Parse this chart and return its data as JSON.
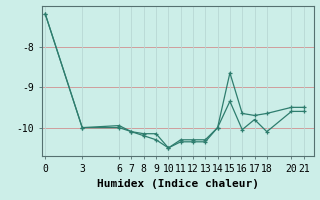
{
  "xlabel": "Humidex (Indice chaleur)",
  "background_color": "#cceee8",
  "line_color": "#2e7d6e",
  "grid_color_h": "#d09090",
  "grid_color_v": "#b8d8d4",
  "xtick_labels": [
    "0",
    "3",
    "6",
    "7",
    "8",
    "9",
    "10",
    "11",
    "12",
    "13",
    "14",
    "15",
    "16",
    "17",
    "18",
    "20",
    "21"
  ],
  "xtick_positions": [
    0,
    3,
    6,
    7,
    8,
    9,
    10,
    11,
    12,
    13,
    14,
    15,
    16,
    17,
    18,
    20,
    21
  ],
  "ytick_labels": [
    "-8",
    "-9",
    "-10"
  ],
  "ytick_positions": [
    -8,
    -9,
    -10
  ],
  "ylim": [
    -10.7,
    -7.0
  ],
  "xlim": [
    -0.3,
    21.8
  ],
  "line1_x": [
    0,
    3,
    6,
    7,
    8,
    9,
    10,
    11,
    12,
    13,
    14,
    15,
    16,
    17,
    18,
    20,
    21
  ],
  "line1_y": [
    -7.2,
    -10.0,
    -9.95,
    -10.1,
    -10.2,
    -10.3,
    -10.5,
    -10.35,
    -10.35,
    -10.35,
    -10.0,
    -9.35,
    -10.05,
    -9.8,
    -10.1,
    -9.6,
    -9.6
  ],
  "line2_x": [
    0,
    3,
    6,
    7,
    8,
    9,
    10,
    11,
    12,
    13,
    14,
    15,
    16,
    17,
    18,
    20,
    21
  ],
  "line2_y": [
    -7.2,
    -10.0,
    -10.0,
    -10.1,
    -10.15,
    -10.15,
    -10.5,
    -10.3,
    -10.3,
    -10.3,
    -10.0,
    -8.65,
    -9.65,
    -9.7,
    -9.65,
    -9.5,
    -9.5
  ],
  "fontsize_label": 7,
  "fontsize_tick": 7,
  "fontsize_xlabel": 8
}
